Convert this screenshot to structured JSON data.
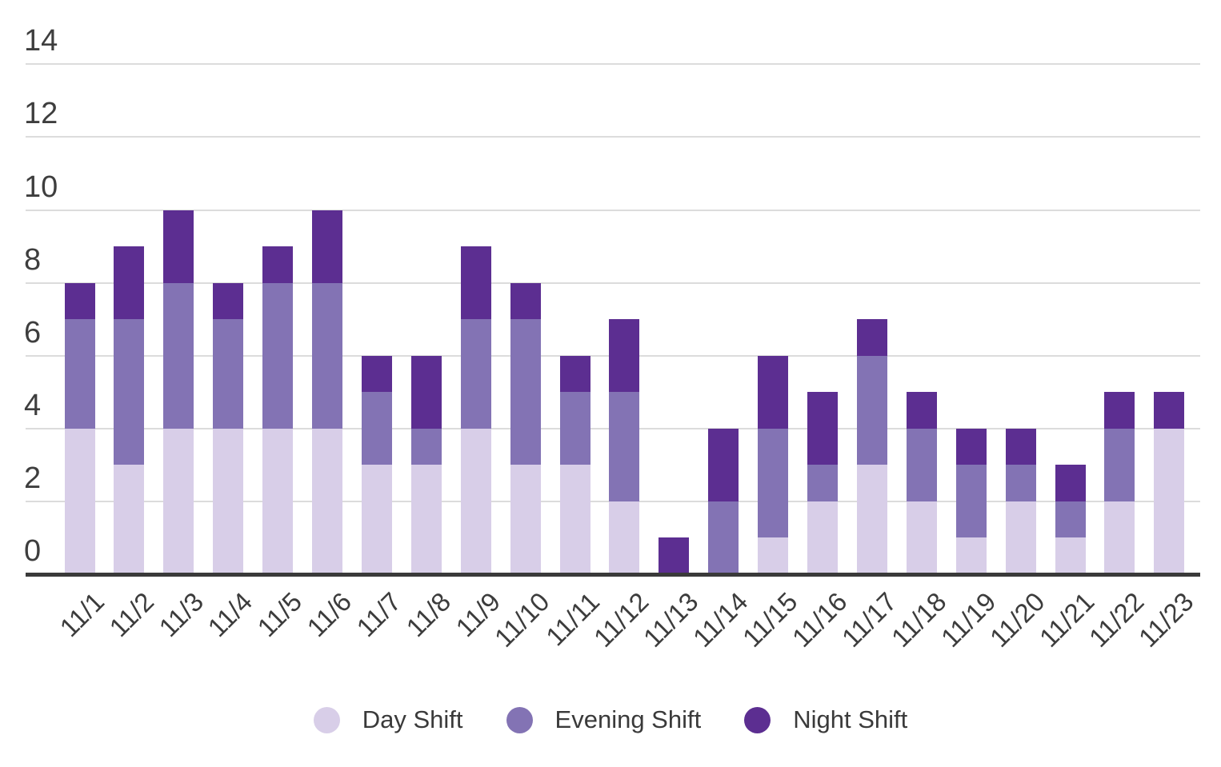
{
  "chart_data": {
    "type": "bar",
    "stacked": true,
    "title": "",
    "xlabel": "",
    "ylabel": "",
    "grid": true,
    "legend_position": "bottom",
    "ylim": [
      0,
      14
    ],
    "yticks": [
      0,
      2,
      4,
      6,
      8,
      10,
      12,
      14
    ],
    "categories": [
      "11/1",
      "11/2",
      "11/3",
      "11/4",
      "11/5",
      "11/6",
      "11/7",
      "11/8",
      "11/9",
      "11/10",
      "11/11",
      "11/12",
      "11/13",
      "11/14",
      "11/15",
      "11/16",
      "11/17",
      "11/18",
      "11/19",
      "11/20",
      "11/21",
      "11/22",
      "11/23"
    ],
    "series": [
      {
        "name": "Day Shift",
        "color": "#d8cee8",
        "values": [
          4,
          3,
          4,
          4,
          4,
          4,
          3,
          3,
          4,
          3,
          3,
          2,
          0,
          0,
          1,
          2,
          3,
          2,
          1,
          2,
          1,
          2,
          4
        ]
      },
      {
        "name": "Evening Shift",
        "color": "#8373b4",
        "values": [
          3,
          4,
          4,
          3,
          4,
          4,
          2,
          1,
          3,
          4,
          2,
          3,
          0,
          2,
          3,
          1,
          3,
          2,
          2,
          1,
          1,
          2,
          0
        ]
      },
      {
        "name": "Night Shift",
        "color": "#5c2e91",
        "values": [
          1,
          2,
          2,
          1,
          1,
          2,
          1,
          2,
          2,
          1,
          1,
          2,
          1,
          2,
          2,
          2,
          1,
          1,
          1,
          1,
          1,
          1,
          1
        ]
      }
    ],
    "totals": [
      8,
      9,
      10,
      8,
      9,
      10,
      6,
      6,
      9,
      8,
      6,
      7,
      1,
      4,
      6,
      5,
      7,
      5,
      4,
      4,
      3,
      5,
      5
    ]
  },
  "colors": {
    "gridline": "#dcdcdc",
    "axis_line": "#3a3a3a",
    "tick_text": "#3e3e3e",
    "legend_text": "#3a3a3a",
    "background": "#ffffff"
  }
}
